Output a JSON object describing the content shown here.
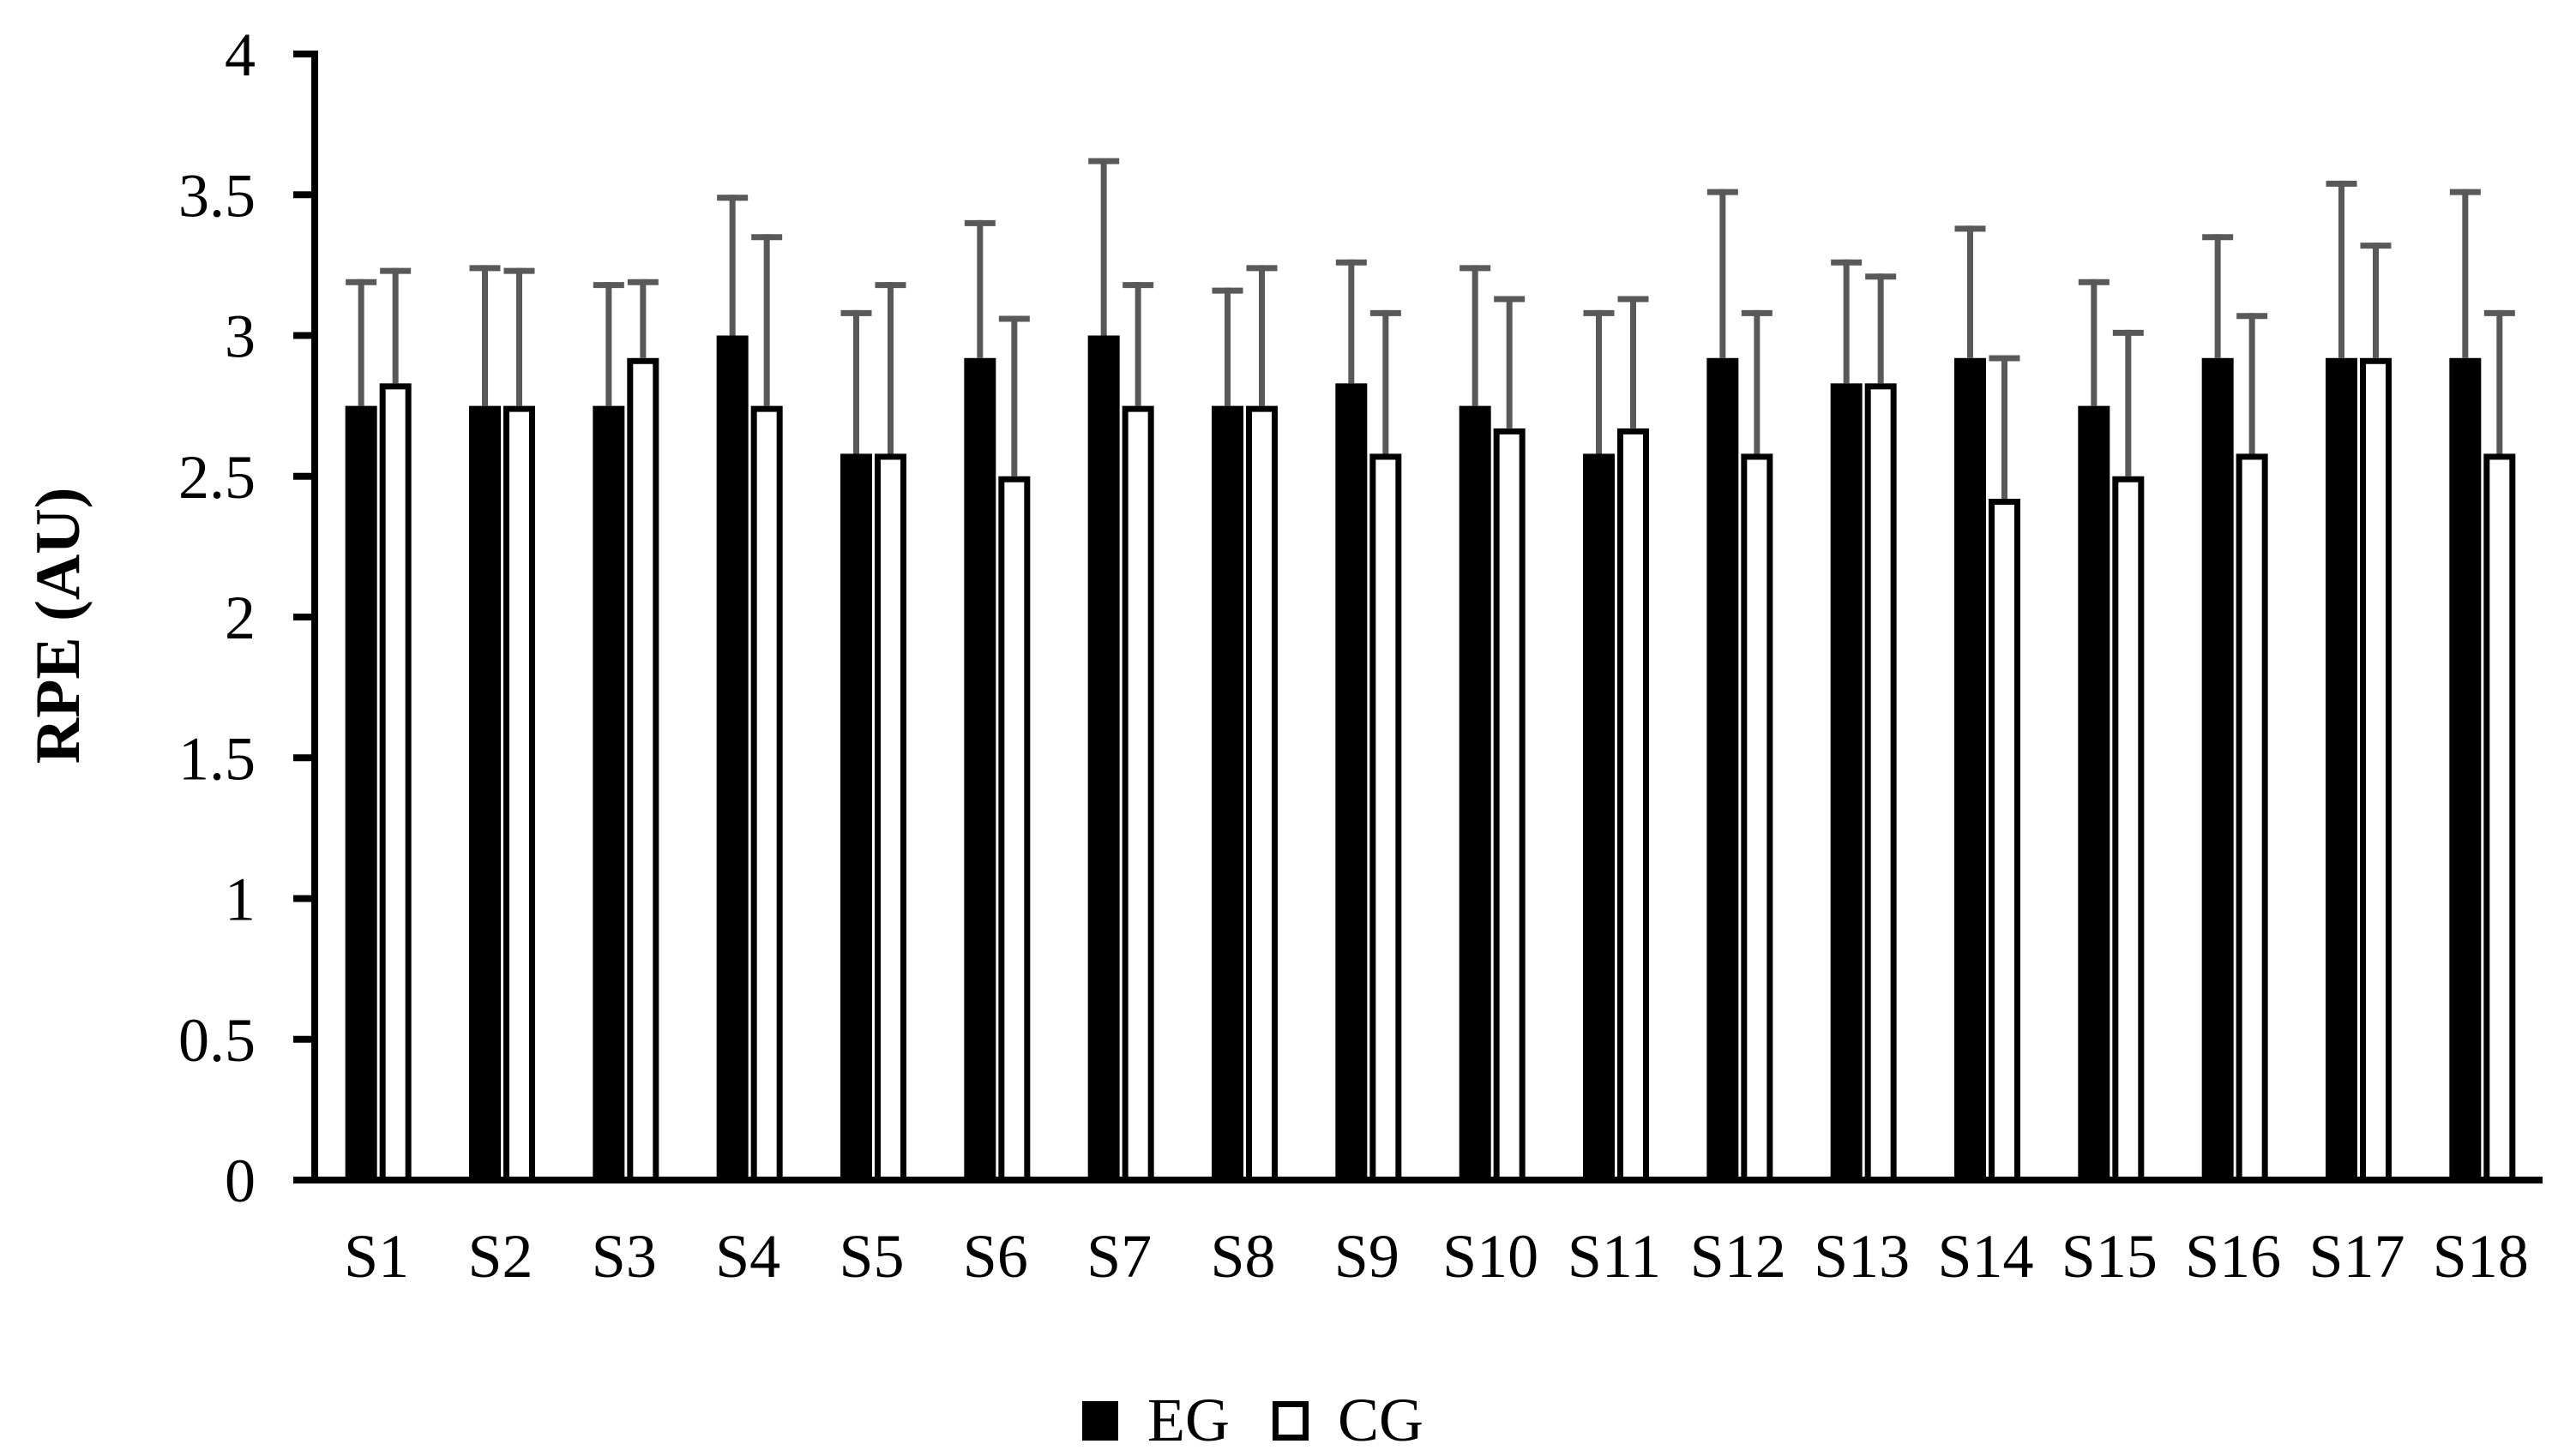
{
  "chart_data": {
    "type": "bar",
    "title": "",
    "xlabel": "",
    "ylabel": "RPE (AU)",
    "ylim": [
      0,
      4
    ],
    "yticks": [
      "0",
      "0.5",
      "1",
      "1.5",
      "2",
      "2.5",
      "3",
      "3.5",
      "4"
    ],
    "grid": false,
    "legend_position": "bottom",
    "error_bars": true,
    "categories": [
      "S1",
      "S2",
      "S3",
      "S4",
      "S5",
      "S6",
      "S7",
      "S8",
      "S9",
      "S10",
      "S11",
      "S12",
      "S13",
      "S14",
      "S15",
      "S16",
      "S17",
      "S18"
    ],
    "series": [
      {
        "name": "EG",
        "color": "#000000",
        "style": "filled",
        "values": [
          2.75,
          2.75,
          2.75,
          3.0,
          2.58,
          2.92,
          3.0,
          2.75,
          2.83,
          2.75,
          2.58,
          2.92,
          2.83,
          2.92,
          2.75,
          2.92,
          2.92,
          2.92
        ],
        "error_upper": [
          3.2,
          3.25,
          3.19,
          3.5,
          3.09,
          3.41,
          3.63,
          3.17,
          3.27,
          3.25,
          3.09,
          3.52,
          3.27,
          3.39,
          3.2,
          3.36,
          3.55,
          3.52
        ]
      },
      {
        "name": "CG",
        "color": "#ffffff",
        "style": "outlined",
        "values": [
          2.83,
          2.75,
          2.92,
          2.75,
          2.58,
          2.5,
          2.75,
          2.75,
          2.58,
          2.67,
          2.67,
          2.58,
          2.83,
          2.42,
          2.5,
          2.58,
          2.92,
          2.58
        ],
        "error_upper": [
          3.24,
          3.24,
          3.2,
          3.36,
          3.19,
          3.07,
          3.19,
          3.25,
          3.09,
          3.14,
          3.14,
          3.09,
          3.22,
          2.93,
          3.02,
          3.08,
          3.33,
          3.09
        ]
      }
    ]
  },
  "legend": {
    "items": [
      {
        "label": "EG",
        "swatch": "filled"
      },
      {
        "label": "CG",
        "swatch": "outlined"
      }
    ]
  },
  "colors": {
    "axis": "#000000",
    "error_bar": "#595959",
    "eg_fill": "#000000",
    "cg_fill": "#ffffff",
    "cg_border": "#000000"
  }
}
